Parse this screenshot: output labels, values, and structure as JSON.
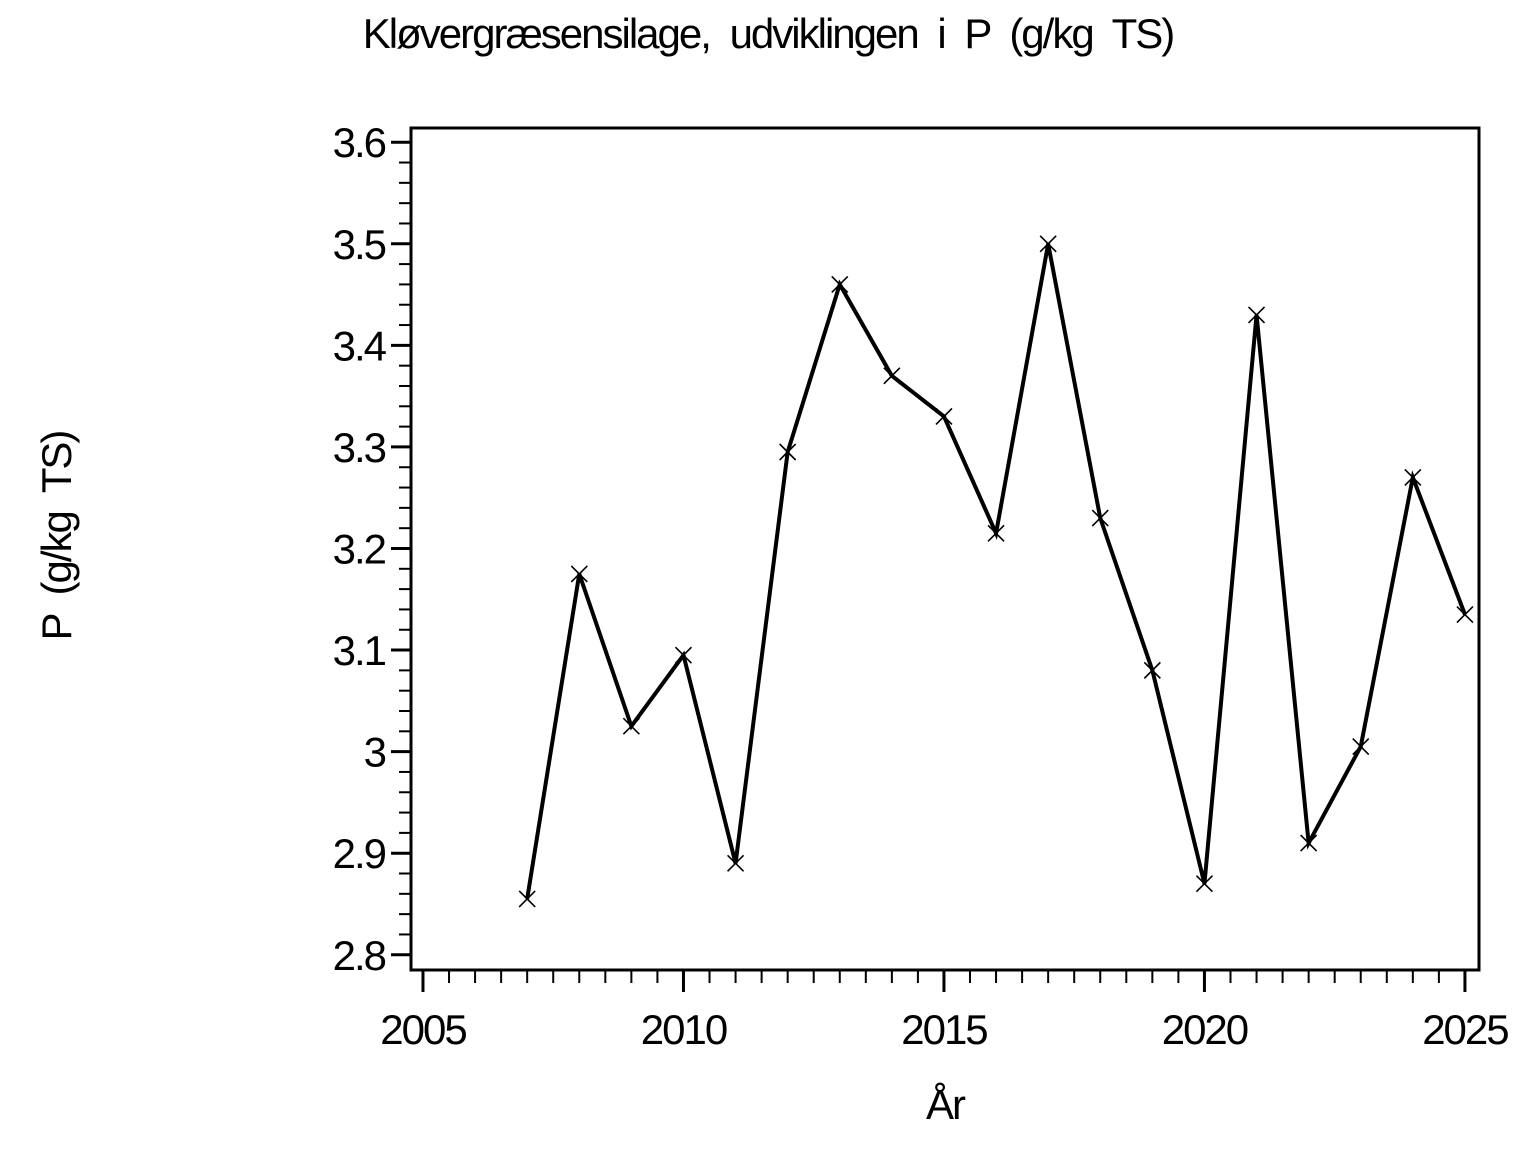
{
  "page": {
    "background_color": "#ffffff",
    "foreground_color": "#000000"
  },
  "chart_data": {
    "type": "line",
    "title": "Kløvergræsensilage, udviklingen i P (g/kg TS)",
    "xlabel": "År",
    "ylabel": "P (g/kg TS)",
    "series": [
      {
        "name": "P (g/kg TS)",
        "marker": "x",
        "x": [
          2007,
          2008,
          2009,
          2010,
          2011,
          2012,
          2013,
          2014,
          2015,
          2016,
          2017,
          2018,
          2019,
          2020,
          2021,
          2022,
          2023,
          2024,
          2025
        ],
        "values": [
          2.855,
          3.175,
          3.025,
          3.095,
          2.89,
          3.295,
          3.46,
          3.37,
          3.33,
          3.215,
          3.5,
          3.23,
          3.08,
          2.87,
          3.43,
          2.91,
          3.005,
          3.27,
          3.135
        ]
      }
    ],
    "line_color": "#000000",
    "grid": false,
    "legend": "none",
    "xlim": [
      2004.77,
      2025.27
    ],
    "ylim": [
      2.785,
      3.614
    ],
    "x_major_ticks": [
      2005,
      2010,
      2015,
      2020,
      2025
    ],
    "x_tick_labels": [
      "2005",
      "2010",
      "2015",
      "2020",
      "2025"
    ],
    "x_minor_step": 0.5,
    "y_major_ticks": [
      2.8,
      2.9,
      3.0,
      3.1,
      3.2,
      3.3,
      3.4,
      3.5,
      3.6
    ],
    "y_tick_labels": [
      "2.8",
      "2.9",
      "3",
      "3.1",
      "3.2",
      "3.3",
      "3.4",
      "3.5",
      "3.6"
    ],
    "y_minor_step": 0.02
  }
}
